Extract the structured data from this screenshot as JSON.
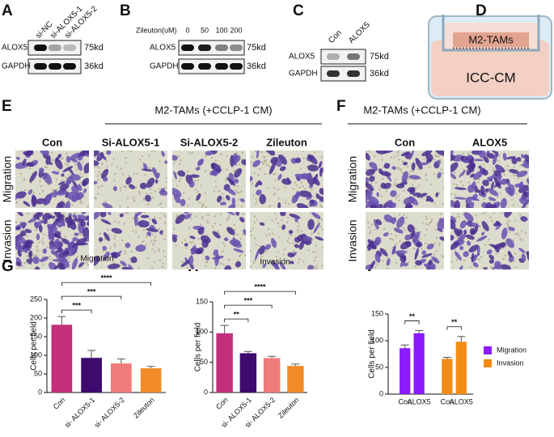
{
  "panel_labels": [
    "A",
    "B",
    "C",
    "D",
    "E",
    "F",
    "G",
    "H",
    "I"
  ],
  "blot_a": {
    "lanes": [
      "si-NC",
      "si-ALOX5-1",
      "si-ALOX5-2"
    ],
    "rows": [
      {
        "protein": "ALOX5",
        "size": "75kd"
      },
      {
        "protein": "GAPDH",
        "size": "36kd"
      }
    ]
  },
  "blot_b": {
    "treatment": "Zileuton(uM)",
    "lanes": [
      "0",
      "50",
      "100",
      "200"
    ],
    "rows": [
      {
        "protein": "ALOX5",
        "size": "75kd"
      },
      {
        "protein": "GAPDH",
        "size": "36kd"
      }
    ]
  },
  "blot_c": {
    "lanes": [
      "Con",
      "ALOX5"
    ],
    "rows": [
      {
        "protein": "ALOX5",
        "size": "75kd"
      },
      {
        "protein": "GAPDH",
        "size": "36kd"
      }
    ]
  },
  "diagram_d": {
    "upper": "M2-TAMs",
    "lower": "ICC-CM"
  },
  "panel_e": {
    "title": "M2-TAMs (+CCLP-1 CM)",
    "columns": [
      "Con",
      "Si-ALOX5-1",
      "Si-ALOX5-2",
      "Zileuton"
    ],
    "rows": [
      "Migration",
      "Invasion"
    ]
  },
  "panel_f": {
    "title": "M2-TAMs (+CCLP-1 CM)",
    "columns": [
      "Con",
      "ALOX5"
    ],
    "rows": [
      "Migration",
      "Invasion"
    ]
  },
  "chart_data": [
    {
      "type": "bar",
      "title": "Migration",
      "ylabel": "Cells per field",
      "categories": [
        "Con",
        "si- ALOX5-1",
        "si- ALOX5-2",
        "Zileuton"
      ],
      "values": [
        182,
        93,
        78,
        65
      ],
      "errors": [
        22,
        20,
        12,
        5
      ],
      "colors": [
        "#c2307a",
        "#3d0a6e",
        "#f07b7b",
        "#f28c28"
      ],
      "ylim": [
        0,
        250
      ],
      "yticks": [
        0,
        50,
        100,
        150,
        200,
        250
      ],
      "annotations": [
        "***",
        "***",
        "****"
      ]
    },
    {
      "type": "bar",
      "title": "Invasion",
      "ylabel": "Cells per field",
      "categories": [
        "Con",
        "si- ALOX5-1",
        "si- ALOX5-2",
        "Zileuton"
      ],
      "values": [
        98,
        65,
        57,
        44
      ],
      "errors": [
        13,
        3,
        3,
        3
      ],
      "colors": [
        "#c2307a",
        "#3d0a6e",
        "#f07b7b",
        "#f28c28"
      ],
      "ylim": [
        0,
        150
      ],
      "yticks": [
        0,
        50,
        100,
        150
      ],
      "annotations": [
        "**",
        "***",
        "****"
      ]
    },
    {
      "type": "grouped-bar",
      "ylabel": "Cells per field",
      "categories": [
        "Con",
        "ALOX5",
        "Con",
        "ALOX5"
      ],
      "series": [
        {
          "name": "Migration",
          "color": "#8b1aff",
          "values": [
            86,
            114,
            null,
            null
          ],
          "errors": [
            6,
            5,
            null,
            null
          ]
        },
        {
          "name": "Invasion",
          "color": "#f28c14",
          "values": [
            null,
            null,
            66,
            98
          ],
          "errors": [
            null,
            null,
            3,
            10
          ]
        }
      ],
      "ylim": [
        0,
        150
      ],
      "yticks": [
        0,
        50,
        100,
        150
      ],
      "annotations": [
        "**",
        "**"
      ]
    }
  ]
}
